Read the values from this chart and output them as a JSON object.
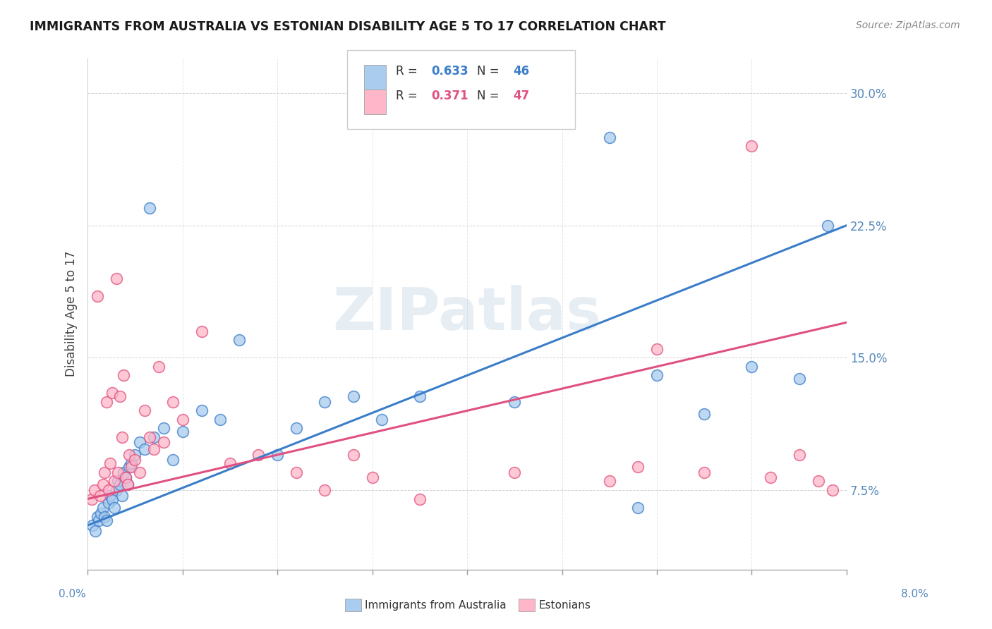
{
  "title": "IMMIGRANTS FROM AUSTRALIA VS ESTONIAN DISABILITY AGE 5 TO 17 CORRELATION CHART",
  "source": "Source: ZipAtlas.com",
  "ylabel": "Disability Age 5 to 17",
  "y_ticks": [
    7.5,
    15.0,
    22.5,
    30.0
  ],
  "x_range": [
    0.0,
    8.0
  ],
  "y_range": [
    3.0,
    32.0
  ],
  "legend1_r": "0.633",
  "legend1_n": "46",
  "legend2_r": "0.371",
  "legend2_n": "47",
  "trend1_color": "#3a7dc9",
  "trend2_color": "#e05080",
  "scatter1_face": "#aaccee",
  "scatter2_face": "#ffb6c8",
  "scatter1_edge": "#3a7dc9",
  "scatter2_edge": "#e05080",
  "blue_x": [
    0.05,
    0.08,
    0.1,
    0.12,
    0.14,
    0.16,
    0.18,
    0.2,
    0.22,
    0.24,
    0.26,
    0.28,
    0.3,
    0.32,
    0.34,
    0.36,
    0.38,
    0.4,
    0.42,
    0.44,
    0.46,
    0.5,
    0.55,
    0.6,
    0.65,
    0.7,
    0.8,
    0.9,
    1.0,
    1.2,
    1.4,
    1.6,
    2.0,
    2.2,
    2.5,
    2.8,
    3.1,
    3.5,
    4.5,
    5.5,
    5.8,
    6.0,
    6.5,
    7.0,
    7.5,
    7.8
  ],
  "blue_y": [
    5.5,
    5.2,
    6.0,
    5.8,
    6.2,
    6.5,
    6.0,
    5.8,
    6.8,
    7.2,
    7.0,
    6.5,
    7.5,
    8.0,
    7.8,
    7.2,
    8.5,
    8.2,
    7.8,
    8.8,
    9.0,
    9.5,
    10.2,
    9.8,
    23.5,
    10.5,
    11.0,
    9.2,
    10.8,
    12.0,
    11.5,
    16.0,
    9.5,
    11.0,
    12.5,
    12.8,
    11.5,
    12.8,
    12.5,
    27.5,
    6.5,
    14.0,
    11.8,
    14.5,
    13.8,
    22.5
  ],
  "pink_x": [
    0.04,
    0.07,
    0.1,
    0.13,
    0.16,
    0.18,
    0.2,
    0.22,
    0.24,
    0.26,
    0.28,
    0.3,
    0.32,
    0.34,
    0.36,
    0.38,
    0.4,
    0.42,
    0.44,
    0.46,
    0.5,
    0.55,
    0.6,
    0.65,
    0.7,
    0.75,
    0.8,
    0.9,
    1.0,
    1.2,
    1.5,
    1.8,
    2.2,
    2.5,
    2.8,
    3.0,
    3.5,
    4.5,
    5.5,
    5.8,
    6.0,
    6.5,
    7.0,
    7.2,
    7.5,
    7.7,
    7.85
  ],
  "pink_y": [
    7.0,
    7.5,
    18.5,
    7.2,
    7.8,
    8.5,
    12.5,
    7.5,
    9.0,
    13.0,
    8.0,
    19.5,
    8.5,
    12.8,
    10.5,
    14.0,
    8.2,
    7.8,
    9.5,
    8.8,
    9.2,
    8.5,
    12.0,
    10.5,
    9.8,
    14.5,
    10.2,
    12.5,
    11.5,
    16.5,
    9.0,
    9.5,
    8.5,
    7.5,
    9.5,
    8.2,
    7.0,
    8.5,
    8.0,
    8.8,
    15.5,
    8.5,
    27.0,
    8.2,
    9.5,
    8.0,
    7.5
  ]
}
